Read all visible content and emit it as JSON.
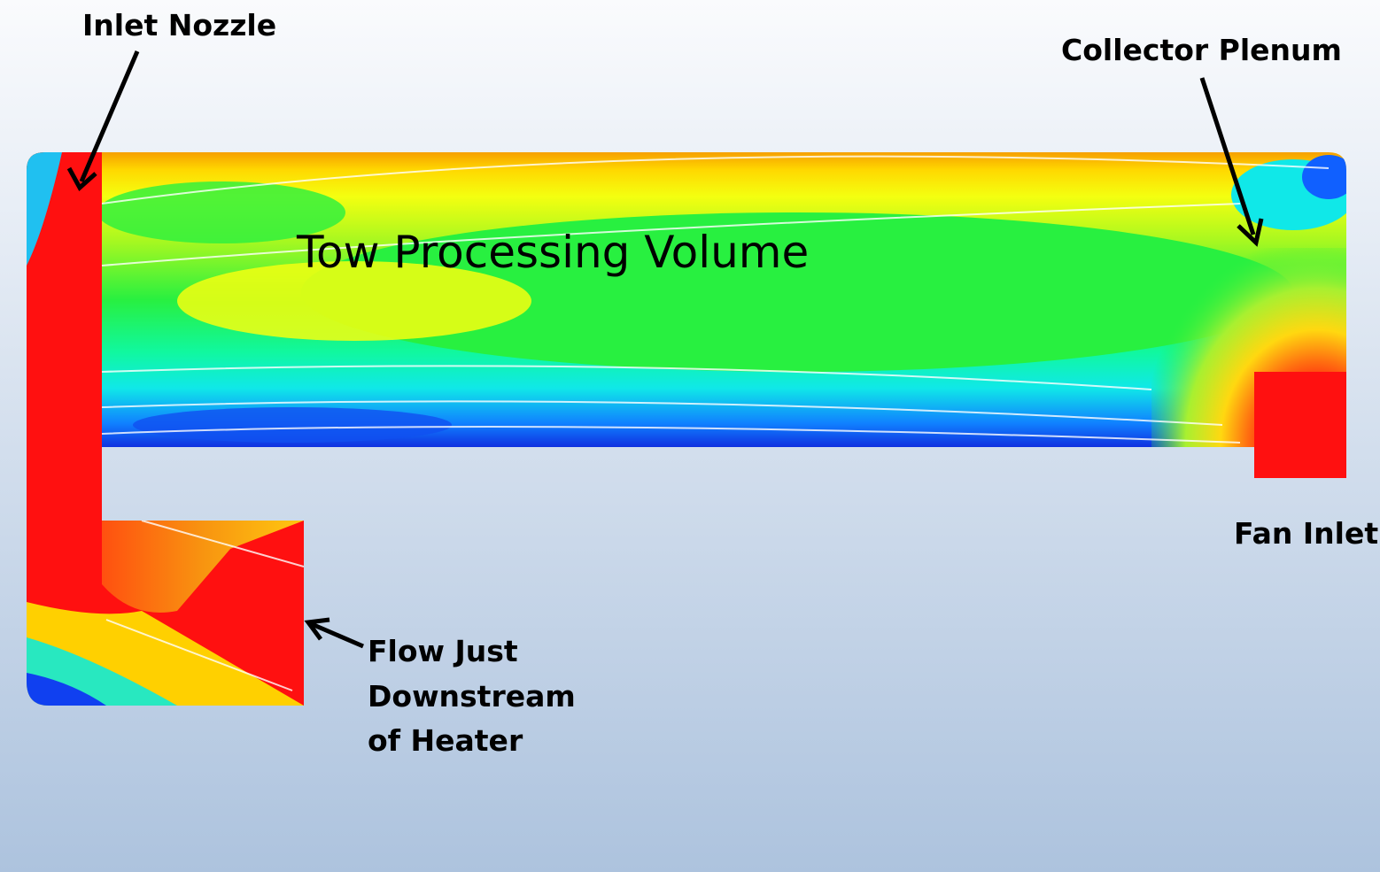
{
  "labels": {
    "inlet_nozzle": "Inlet Nozzle",
    "collector_plenum": "Collector Plenum",
    "tow_processing_volume": "Tow Processing Volume",
    "fan_inlet": "Fan Inlet",
    "flow_downstream": [
      "Flow Just",
      "Downstream",
      "of Heater"
    ]
  }
}
